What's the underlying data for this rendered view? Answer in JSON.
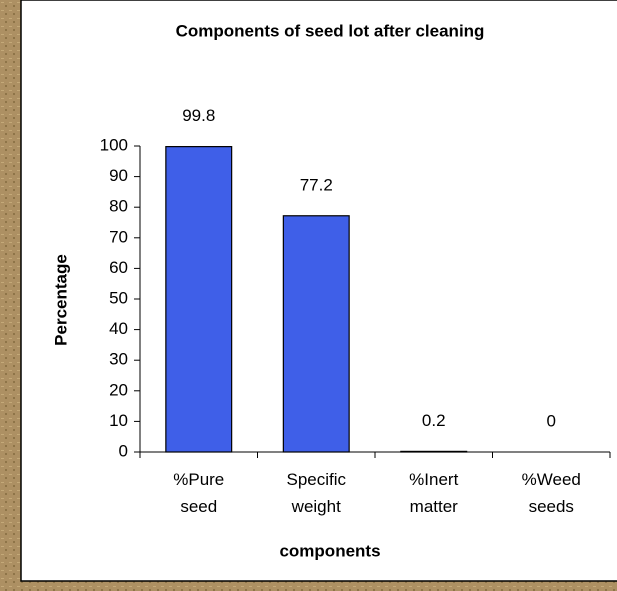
{
  "chart_data": {
    "type": "bar",
    "title": "Components of seed lot after cleaning",
    "xlabel": "components",
    "ylabel": "Percentage",
    "categories": [
      "%Pure seed",
      "Specific weight",
      "%Inert matter",
      "%Weed seeds"
    ],
    "values": [
      99.8,
      77.2,
      0.2,
      0
    ],
    "color": "#3f5fe8",
    "ylim": [
      0,
      100
    ],
    "yticks": [
      0,
      10,
      20,
      30,
      40,
      50,
      60,
      70,
      80,
      90,
      100
    ],
    "grid": false
  }
}
